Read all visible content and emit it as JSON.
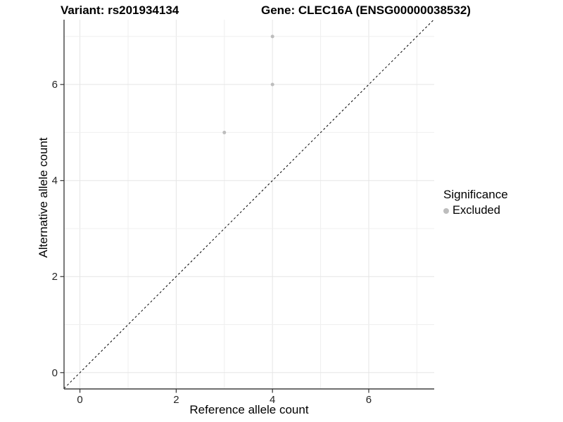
{
  "chart_data": {
    "type": "scatter",
    "titles": {
      "left": "Variant: rs201934134",
      "right": "Gene: CLEC16A (ENSG00000038532)"
    },
    "xlabel": "Reference allele count",
    "ylabel": "Alternative allele count",
    "xlim": [
      -0.33,
      7.36
    ],
    "ylim": [
      -0.34,
      7.35
    ],
    "xticks": [
      0,
      2,
      4,
      6
    ],
    "yticks": [
      0,
      2,
      4,
      6
    ],
    "grid_positions": [
      0,
      1,
      2,
      3,
      4,
      5,
      6,
      7
    ],
    "series": [
      {
        "name": "Excluded",
        "color": "#bdbdbd",
        "points": [
          [
            3,
            5
          ],
          [
            4,
            6
          ],
          [
            4,
            7
          ]
        ]
      }
    ],
    "reference_line": {
      "type": "identity",
      "slope": 1,
      "intercept": 0,
      "style": "dashed",
      "color": "#000000"
    },
    "legend": {
      "title": "Significance",
      "position": "right",
      "items": [
        {
          "label": "Excluded",
          "color": "#bdbdbd"
        }
      ]
    },
    "grid": true,
    "colors": {
      "background": "#ffffff",
      "grid_major": "#e5e5e5",
      "grid_minor": "#efefef",
      "axis_line": "#404040",
      "tick_mark": "#333333",
      "tick_label": "#262626"
    },
    "tick_label_size": 15
  }
}
